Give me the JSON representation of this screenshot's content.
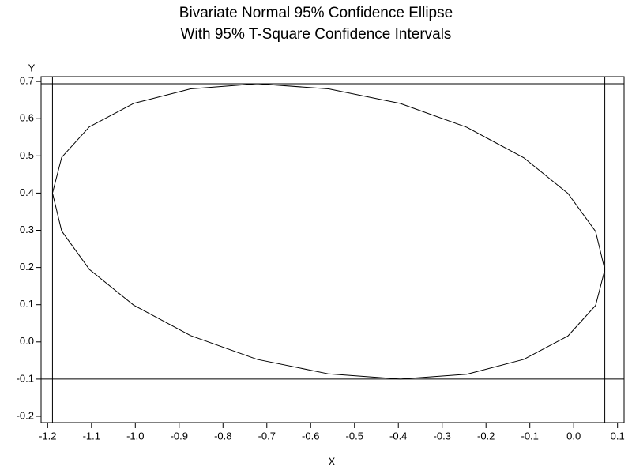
{
  "chart_data": {
    "type": "line",
    "title": "Bivariate Normal 95% Confidence Ellipse",
    "subtitle": "With 95% T-Square Confidence Intervals",
    "x_label": "X",
    "y_label": "Y",
    "x": [
      0.071,
      0.05,
      -0.013,
      -0.114,
      -0.244,
      -0.396,
      -0.559,
      -0.722,
      -0.874,
      -1.004,
      -1.105,
      -1.168,
      -1.189,
      -1.168,
      -1.105,
      -1.004,
      -0.874,
      -0.722,
      -0.559,
      -0.396,
      -0.244,
      -0.114,
      -0.013,
      0.05,
      0.071
    ],
    "series": [
      {
        "color": "#000000",
        "values": [
          0.194,
          0.297,
          0.399,
          0.495,
          0.577,
          0.641,
          0.68,
          0.694,
          0.68,
          0.641,
          0.578,
          0.496,
          0.4,
          0.298,
          0.195,
          0.099,
          0.017,
          -0.047,
          -0.086,
          -0.1,
          -0.087,
          -0.047,
          0.016,
          0.098,
          0.194
        ]
      }
    ],
    "hlines": [
      -0.1,
      0.694
    ],
    "vlines": [
      -1.189,
      0.071
    ],
    "xlim": [
      -1.215,
      0.115
    ],
    "ylim": [
      -0.217,
      0.713
    ],
    "xticks": [
      -1.2,
      -1.1,
      {
        "value": -1,
        "label": "-1.0"
      },
      -0.9,
      -0.8,
      -0.7,
      -0.6,
      -0.5,
      -0.4,
      -0.3,
      -0.2,
      -0.1,
      {
        "value": 0,
        "label": "0.0"
      },
      0.1
    ],
    "yticks": [
      -0.2,
      -0.1,
      {
        "value": 0,
        "label": "0.0"
      },
      0.1,
      0.2,
      0.3,
      0.4,
      0.5,
      0.6,
      0.7
    ]
  }
}
